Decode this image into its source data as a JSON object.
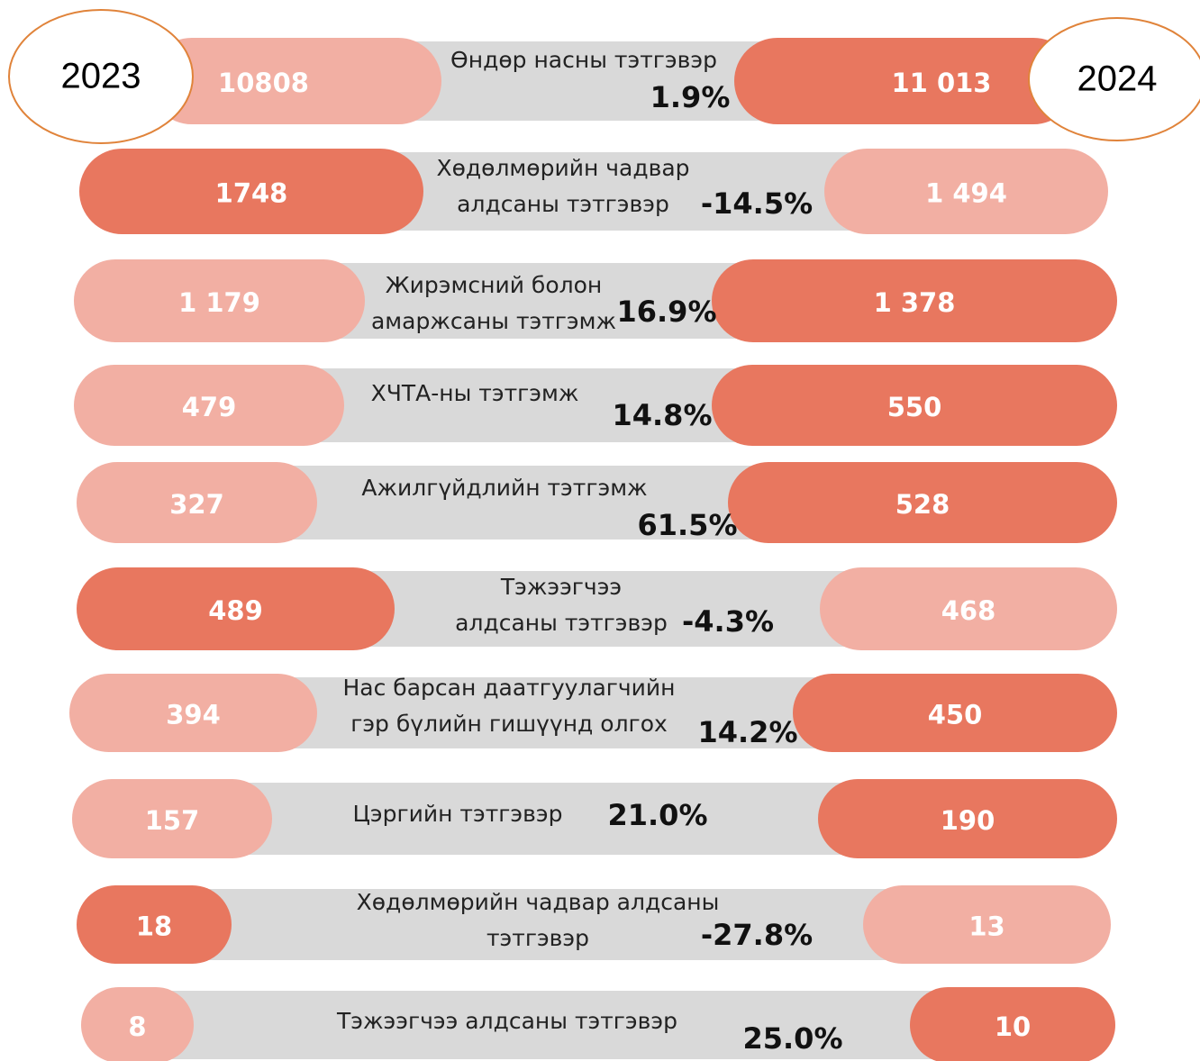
{
  "years": [
    "2023",
    "2024"
  ],
  "rows": [
    {
      "label": [
        "Өндөр насны тэтгэвэр"
      ],
      "y2023": "10808",
      "y2024": "11 013",
      "change": "1.9%"
    },
    {
      "label": [
        "Хөдөлмөрийн чадвар",
        "алдсаны тэтгэвэр"
      ],
      "y2023": "1748",
      "y2024": "1 494",
      "change": "-14.5%"
    },
    {
      "label": [
        "Жирэмсний болон",
        "амаржсаны тэтгэмж"
      ],
      "y2023": "1 179",
      "y2024": "1 378",
      "change": "16.9%"
    },
    {
      "label": [
        "ХЧТА-ны тэтгэмж"
      ],
      "y2023": "479",
      "y2024": "550",
      "change": "14.8%"
    },
    {
      "label": [
        "Ажилгүйдлийн тэтгэмж"
      ],
      "y2023": "327",
      "y2024": "528",
      "change": "61.5%"
    },
    {
      "label": [
        "Тэжээгчээ",
        "алдсаны тэтгэвэр"
      ],
      "y2023": "489",
      "y2024": "468",
      "change": "-4.3%"
    },
    {
      "label": [
        "Нас барсан даатгуулагчийн",
        "гэр бүлийн гишүүнд олгох"
      ],
      "y2023": "394",
      "y2024": "450",
      "change": "14.2%"
    },
    {
      "label": [
        "Цэргийн тэтгэвэр"
      ],
      "y2023": "157",
      "y2024": "190",
      "change": "21.0%"
    },
    {
      "label": [
        "Хөдөлмөрийн чадвар алдсаны",
        "тэтгэвэр"
      ],
      "y2023": "18",
      "y2024": "13",
      "change": "-27.8%"
    },
    {
      "label": [
        "Тэжээгчээ алдсаны тэтгэвэр"
      ],
      "y2023": "8",
      "y2024": "10",
      "change": "25.0%"
    }
  ]
}
